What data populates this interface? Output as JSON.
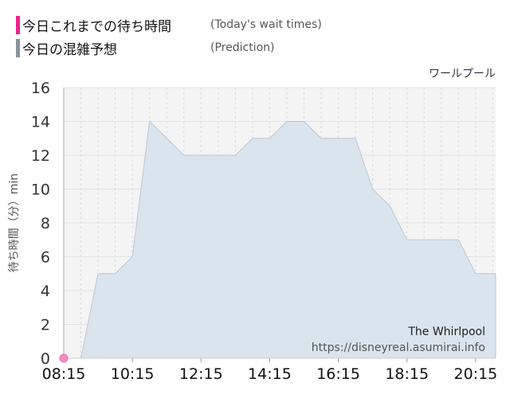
{
  "legend": {
    "actual_jp": "今日これまでの待ち時間",
    "actual_en": "(Today's wait times)",
    "prediction_jp": "今日の混雑予想",
    "prediction_en": "(Prediction)"
  },
  "ride_name_jp": "ワールプール",
  "watermark": {
    "name": "The Whirlpool",
    "url": "https://disneyreal.asumirai.info"
  },
  "colors": {
    "actual": "#f0228c",
    "prediction_fill": "#d9e4ec",
    "prediction_line": "#b9c8d4",
    "plot_bg": "#f4f4f4"
  },
  "chart_data": {
    "type": "area",
    "ylabel": "待ち時間（分）min",
    "ylim": [
      0,
      16
    ],
    "yticks": [
      "0",
      "2",
      "4",
      "6",
      "8",
      "10",
      "12",
      "14",
      "16"
    ],
    "xticks": [
      "08:15",
      "10:15",
      "12:15",
      "14:15",
      "16:15",
      "18:15",
      "20:15"
    ],
    "xlim": [
      "08:15",
      "20:50"
    ],
    "grid": true,
    "series": [
      {
        "name": "今日の混雑予想",
        "x": [
          "08:15",
          "08:45",
          "09:15",
          "09:45",
          "10:15",
          "10:45",
          "11:15",
          "11:45",
          "12:15",
          "12:45",
          "13:15",
          "13:45",
          "14:15",
          "14:45",
          "15:15",
          "15:45",
          "16:15",
          "16:45",
          "17:15",
          "17:45",
          "18:15",
          "18:45",
          "19:15",
          "19:45",
          "20:15",
          "20:45"
        ],
        "values": [
          0,
          0,
          5,
          5,
          6,
          14,
          13,
          12,
          12,
          12,
          12,
          13,
          13,
          14,
          14,
          13,
          13,
          13,
          10,
          9,
          7,
          7,
          7,
          7,
          5,
          5
        ]
      },
      {
        "name": "今日これまでの待ち時間",
        "x": [
          "08:15"
        ],
        "values": [
          0
        ]
      }
    ]
  }
}
